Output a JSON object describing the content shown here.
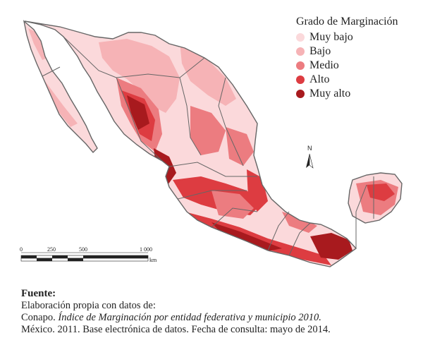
{
  "legend": {
    "title": "Grado de Marginación",
    "items": [
      {
        "label": "Muy bajo",
        "color": "#fbd9db"
      },
      {
        "label": "Bajo",
        "color": "#f6b3b6"
      },
      {
        "label": "Medio",
        "color": "#ec7c80"
      },
      {
        "label": "Alto",
        "color": "#dd3c41"
      },
      {
        "label": "Muy alto",
        "color": "#a81a1e"
      }
    ]
  },
  "scale_bar": {
    "ticks": [
      "0",
      "250",
      "500",
      "1 000"
    ],
    "unit": "km"
  },
  "north_arrow": {
    "label": "N"
  },
  "source": {
    "heading": "Fuente:",
    "line1": "Elaboración propia con datos de:",
    "line2_author": "Conapo.",
    "line2_title": "Índice de Marginación por entidad federativa y municipio 2010.",
    "line3": "México. 2011. Base electrónica de datos. Fecha de consulta: mayo de 2014."
  },
  "colors": {
    "state_border": "#666666",
    "very_low": "#fbd9db",
    "low": "#f6b3b6",
    "medium": "#ec7c80",
    "high": "#dd3c41",
    "very_high": "#a81a1e"
  }
}
